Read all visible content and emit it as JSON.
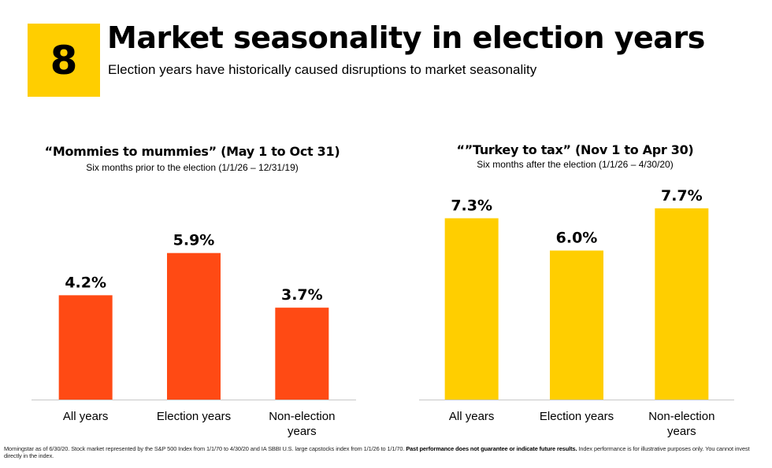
{
  "header": {
    "number": "8",
    "title": "Market seasonality in election years",
    "subtitle": "Election years have historically caused disruptions to market seasonality"
  },
  "panels": [
    {
      "title": "“Mommies to mummies” (May 1 to Oct 31)",
      "subtitle": "Six months prior  to the election  (1/1/26 – 12/31/19)"
    },
    {
      "title": "“”Turkey to tax” (Nov 1 to Apr 30)",
      "subtitle": "Six months after the election (1/1/26 – 4/30/20)"
    }
  ],
  "chart_data": [
    {
      "type": "bar",
      "title": "“Mommies to mummies” (May 1 to Oct 31)",
      "subtitle": "Six months prior  to the election  (1/1/26 – 12/31/19)",
      "categories": [
        "All years",
        "Election years",
        "Non-election years"
      ],
      "values": [
        4.2,
        5.9,
        3.7
      ],
      "labels": [
        "4.2%",
        "5.9%",
        "3.7%"
      ],
      "color": "#FF4A14",
      "ylim": [
        0,
        9.5
      ],
      "grid": false,
      "xlabel": "",
      "ylabel": ""
    },
    {
      "type": "bar",
      "title": "“”Turkey to tax” (Nov 1 to Apr 30)",
      "subtitle": "Six months after the election (1/1/26 – 4/30/20)",
      "categories": [
        "All years",
        "Election years",
        "Non-election years"
      ],
      "values": [
        7.3,
        6.0,
        7.7
      ],
      "labels": [
        "7.3%",
        "6.0%",
        "7.7%"
      ],
      "color": "#FFCE00",
      "ylim": [
        0,
        9.5
      ],
      "grid": false,
      "xlabel": "",
      "ylabel": ""
    }
  ],
  "footnote": {
    "text": "Morningstar as of 6/30/20.  Stock market represented by the S&P 500 Index from 1/1/70 to 4/30/20 and  IA SBBI U.S. large capstocks index from 1/1/26 to 1/1/70. ",
    "bold": "Past performance does not guarantee or indicate future results.",
    "tail": " Index performance is for illustrative purposes only. You cannot invest directly in the index."
  }
}
